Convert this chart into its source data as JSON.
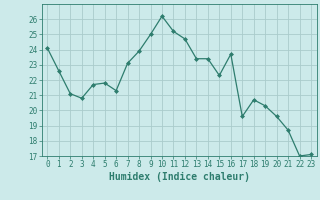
{
  "title": "",
  "xlabel": "Humidex (Indice chaleur)",
  "ylabel": "",
  "x": [
    0,
    1,
    2,
    3,
    4,
    5,
    6,
    7,
    8,
    9,
    10,
    11,
    12,
    13,
    14,
    15,
    16,
    17,
    18,
    19,
    20,
    21,
    22,
    23
  ],
  "y": [
    24.1,
    22.6,
    21.1,
    20.8,
    21.7,
    21.8,
    21.3,
    23.1,
    23.9,
    25.0,
    26.2,
    25.2,
    24.7,
    23.4,
    23.4,
    22.3,
    23.7,
    19.6,
    20.7,
    20.3,
    19.6,
    18.7,
    17.0,
    17.1
  ],
  "line_color": "#2e7d6e",
  "marker": "D",
  "marker_size": 2,
  "bg_color": "#cceaea",
  "grid_color": "#aacccc",
  "tick_color": "#2e7d6e",
  "label_color": "#2e7d6e",
  "ylim": [
    17,
    27
  ],
  "yticks": [
    17,
    18,
    19,
    20,
    21,
    22,
    23,
    24,
    25,
    26
  ],
  "xlim": [
    -0.5,
    23.5
  ],
  "xlabel_fontsize": 7,
  "tick_fontsize": 5.5
}
